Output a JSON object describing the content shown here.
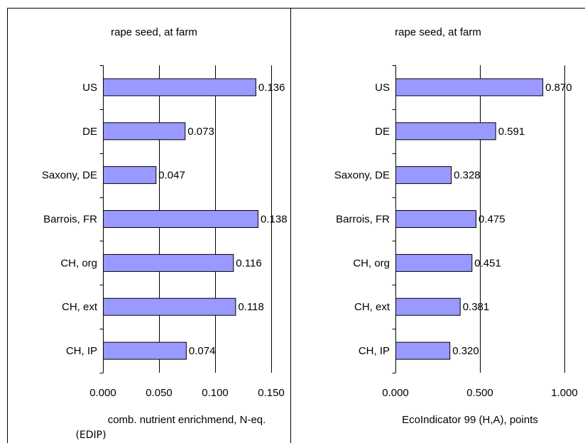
{
  "chart_data": [
    {
      "type": "bar",
      "orientation": "horizontal",
      "title": "rape seed, at farm",
      "xlabel": "comb. nutrient enrichmend, N-eq.",
      "xlabel_line2": "(EDIP)",
      "ylabel": "",
      "categories": [
        "US",
        "DE",
        "Saxony, DE",
        "Barrois, FR",
        "CH, org",
        "CH, ext",
        "CH, IP"
      ],
      "values": [
        0.136,
        0.073,
        0.047,
        0.138,
        0.116,
        0.118,
        0.074
      ],
      "value_labels": [
        "0.136",
        "0.073",
        "0.047",
        "0.138",
        "0.116",
        "0.118",
        "0.074"
      ],
      "xlim": [
        0,
        0.15
      ],
      "xticks": [
        0,
        0.05,
        0.1,
        0.15
      ],
      "xtick_labels": [
        "0.000",
        "0.050",
        "0.100",
        "0.150"
      ],
      "grid": "vertical",
      "bar_color": "#9999FF"
    },
    {
      "type": "bar",
      "orientation": "horizontal",
      "title": "rape seed, at farm",
      "xlabel": "EcoIndicator 99 (H,A), points",
      "ylabel": "",
      "categories": [
        "US",
        "DE",
        "Saxony, DE",
        "Barrois, FR",
        "CH, org",
        "CH, ext",
        "CH, IP"
      ],
      "values": [
        0.87,
        0.591,
        0.328,
        0.475,
        0.451,
        0.381,
        0.32
      ],
      "value_labels": [
        "0.870",
        "0.591",
        "0.328",
        "0.475",
        "0.451",
        "0.381",
        "0.320"
      ],
      "xlim": [
        0,
        1
      ],
      "xticks": [
        0,
        0.5,
        1
      ],
      "xtick_labels": [
        "0.000",
        "0.500",
        "1.000"
      ],
      "grid": "vertical",
      "bar_color": "#9999FF"
    }
  ]
}
